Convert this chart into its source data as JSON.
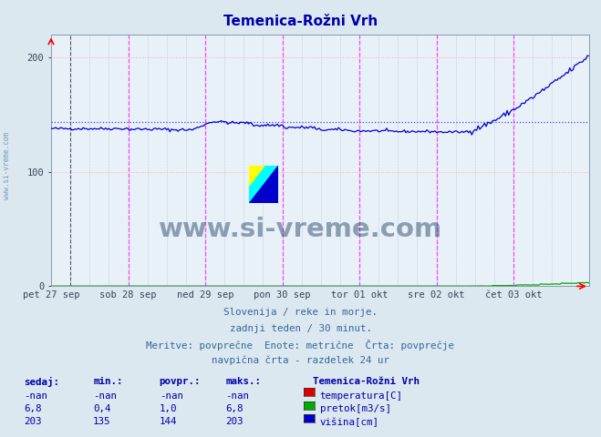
{
  "title": "Temenica-Rožni Vrh",
  "bg_color": "#dce8f0",
  "plot_bg_color": "#e8f0f8",
  "grid_color": "#b8c8d8",
  "x_labels": [
    "pet 27 sep",
    "sob 28 sep",
    "ned 29 sep",
    "pon 30 sep",
    "tor 01 okt",
    "sre 02 okt",
    "čet 03 okt"
  ],
  "x_ticks_idx": [
    0,
    48,
    96,
    144,
    192,
    240,
    288
  ],
  "total_points": 336,
  "y_min": 0,
  "y_max": 220,
  "avg_line_value": 144,
  "subtitle_lines": [
    "Slovenija / reke in morje.",
    "zadnji teden / 30 minut.",
    "Meritve: povprečne  Enote: metrične  Črta: povprečje",
    "navpična črta - razdelek 24 ur"
  ],
  "legend_title": "Temenica-Rožni Vrh",
  "legend_items": [
    {
      "label": "temperatura[C]",
      "color": "#dd0000"
    },
    {
      "label": "pretok[m3/s]",
      "color": "#00aa00"
    },
    {
      "label": "višina[cm]",
      "color": "#0000cc"
    }
  ],
  "table_headers": [
    "sedaj:",
    "min.:",
    "povpr.:",
    "maks.:"
  ],
  "table_rows": [
    [
      "-nan",
      "-nan",
      "-nan",
      "-nan"
    ],
    [
      "6,8",
      "0,4",
      "1,0",
      "6,8"
    ],
    [
      "203",
      "135",
      "144",
      "203"
    ]
  ],
  "magenta_vlines_idx": [
    48,
    96,
    144,
    192,
    240,
    288
  ],
  "black_dashed_vline_idx": 12,
  "avg_dotted_color": "#4444ff",
  "visina_color": "#0000cc",
  "pretok_color": "#00aa00",
  "temp_color": "#dd0000",
  "pretok_max_raw": 6.8,
  "pretok_scale_factor": 3.2,
  "visina_flat_start": 138,
  "rise_start_idx": 258
}
